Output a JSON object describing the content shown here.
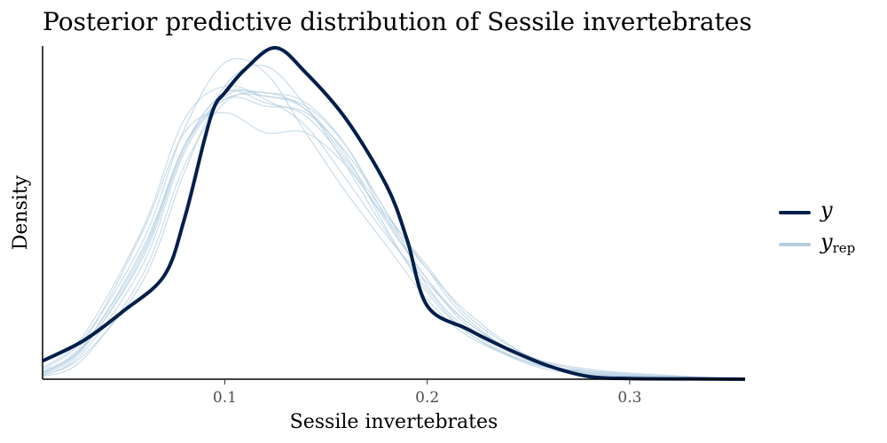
{
  "chart_data": {
    "type": "line",
    "title": "Posterior predictive distribution of Sessile invertebrates",
    "xlabel": "Sessile invertebrates",
    "ylabel": "Density",
    "xlim": [
      0.01,
      0.357
    ],
    "ylim": [
      0,
      1.0
    ],
    "xticks": [
      0.1,
      0.2,
      0.3
    ],
    "xtick_labels": [
      "0.1",
      "0.2",
      "0.3"
    ],
    "colors": {
      "y": "#011f4b",
      "yrep": "#b3cde0"
    },
    "legend": {
      "position": "right",
      "y_label": "y",
      "yrep_main": "y",
      "yrep_sub": "rep"
    },
    "series": [
      {
        "name": "y",
        "x": [
          0.01,
          0.03,
          0.05,
          0.07,
          0.08,
          0.09,
          0.095,
          0.1,
          0.11,
          0.125,
          0.14,
          0.16,
          0.18,
          0.19,
          0.2,
          0.22,
          0.24,
          0.26,
          0.28,
          0.3,
          0.33,
          0.357
        ],
        "y": [
          0.055,
          0.115,
          0.205,
          0.31,
          0.48,
          0.72,
          0.82,
          0.86,
          0.93,
          0.995,
          0.92,
          0.78,
          0.58,
          0.42,
          0.22,
          0.15,
          0.09,
          0.04,
          0.008,
          0.002,
          0.001,
          0.0
        ]
      },
      {
        "name": "yrep_1",
        "x": [
          0.01,
          0.03,
          0.06,
          0.08,
          0.1,
          0.12,
          0.14,
          0.16,
          0.18,
          0.2,
          0.22,
          0.25,
          0.28,
          0.31,
          0.357
        ],
        "y": [
          0.02,
          0.1,
          0.4,
          0.7,
          0.86,
          0.83,
          0.79,
          0.65,
          0.47,
          0.3,
          0.17,
          0.06,
          0.02,
          0.008,
          0.0
        ]
      },
      {
        "name": "yrep_2",
        "x": [
          0.01,
          0.03,
          0.06,
          0.08,
          0.1,
          0.12,
          0.14,
          0.16,
          0.18,
          0.2,
          0.22,
          0.25,
          0.28,
          0.31,
          0.357
        ],
        "y": [
          0.01,
          0.08,
          0.35,
          0.68,
          0.84,
          0.82,
          0.8,
          0.68,
          0.5,
          0.28,
          0.15,
          0.05,
          0.025,
          0.012,
          0.0
        ]
      },
      {
        "name": "yrep_3",
        "x": [
          0.01,
          0.03,
          0.06,
          0.08,
          0.1,
          0.12,
          0.14,
          0.16,
          0.18,
          0.2,
          0.22,
          0.25,
          0.28,
          0.31,
          0.357
        ],
        "y": [
          0.03,
          0.12,
          0.42,
          0.75,
          0.95,
          0.92,
          0.74,
          0.56,
          0.4,
          0.24,
          0.13,
          0.05,
          0.015,
          0.005,
          0.0
        ]
      },
      {
        "name": "yrep_4",
        "x": [
          0.01,
          0.03,
          0.06,
          0.08,
          0.1,
          0.12,
          0.14,
          0.16,
          0.18,
          0.2,
          0.22,
          0.25,
          0.28,
          0.31,
          0.357
        ],
        "y": [
          0.015,
          0.09,
          0.38,
          0.7,
          0.86,
          0.85,
          0.82,
          0.7,
          0.5,
          0.33,
          0.18,
          0.06,
          0.02,
          0.006,
          0.0
        ]
      },
      {
        "name": "yrep_5",
        "x": [
          0.01,
          0.03,
          0.06,
          0.08,
          0.1,
          0.12,
          0.14,
          0.16,
          0.18,
          0.2,
          0.22,
          0.25,
          0.28,
          0.31,
          0.357
        ],
        "y": [
          0.025,
          0.11,
          0.45,
          0.74,
          0.8,
          0.74,
          0.74,
          0.64,
          0.48,
          0.33,
          0.2,
          0.07,
          0.025,
          0.01,
          0.0
        ]
      },
      {
        "name": "yrep_6",
        "x": [
          0.01,
          0.03,
          0.06,
          0.08,
          0.1,
          0.12,
          0.14,
          0.16,
          0.18,
          0.2,
          0.22,
          0.25,
          0.28,
          0.31,
          0.357
        ],
        "y": [
          0.012,
          0.07,
          0.3,
          0.62,
          0.88,
          0.94,
          0.82,
          0.64,
          0.44,
          0.27,
          0.14,
          0.045,
          0.012,
          0.004,
          0.0
        ]
      },
      {
        "name": "yrep_7",
        "x": [
          0.01,
          0.03,
          0.06,
          0.08,
          0.1,
          0.12,
          0.14,
          0.16,
          0.18,
          0.2,
          0.22,
          0.25,
          0.28,
          0.31,
          0.357
        ],
        "y": [
          0.02,
          0.1,
          0.39,
          0.7,
          0.84,
          0.85,
          0.81,
          0.67,
          0.45,
          0.26,
          0.14,
          0.05,
          0.018,
          0.006,
          0.0
        ]
      },
      {
        "name": "yrep_8",
        "x": [
          0.01,
          0.03,
          0.06,
          0.08,
          0.1,
          0.12,
          0.14,
          0.16,
          0.18,
          0.2,
          0.22,
          0.25,
          0.28,
          0.31,
          0.357
        ],
        "y": [
          0.008,
          0.06,
          0.32,
          0.64,
          0.83,
          0.86,
          0.81,
          0.66,
          0.49,
          0.34,
          0.19,
          0.07,
          0.03,
          0.015,
          0.0
        ]
      },
      {
        "name": "yrep_9",
        "x": [
          0.01,
          0.03,
          0.06,
          0.08,
          0.1,
          0.12,
          0.14,
          0.16,
          0.18,
          0.2,
          0.22,
          0.25,
          0.28,
          0.31,
          0.357
        ],
        "y": [
          0.035,
          0.13,
          0.46,
          0.78,
          0.88,
          0.84,
          0.76,
          0.6,
          0.43,
          0.29,
          0.17,
          0.06,
          0.02,
          0.006,
          0.0
        ]
      },
      {
        "name": "yrep_10",
        "x": [
          0.01,
          0.03,
          0.06,
          0.08,
          0.1,
          0.12,
          0.14,
          0.16,
          0.18,
          0.2,
          0.22,
          0.25,
          0.28,
          0.31,
          0.357
        ],
        "y": [
          0.018,
          0.095,
          0.37,
          0.69,
          0.85,
          0.86,
          0.83,
          0.7,
          0.48,
          0.3,
          0.16,
          0.055,
          0.02,
          0.008,
          0.0
        ]
      }
    ]
  }
}
